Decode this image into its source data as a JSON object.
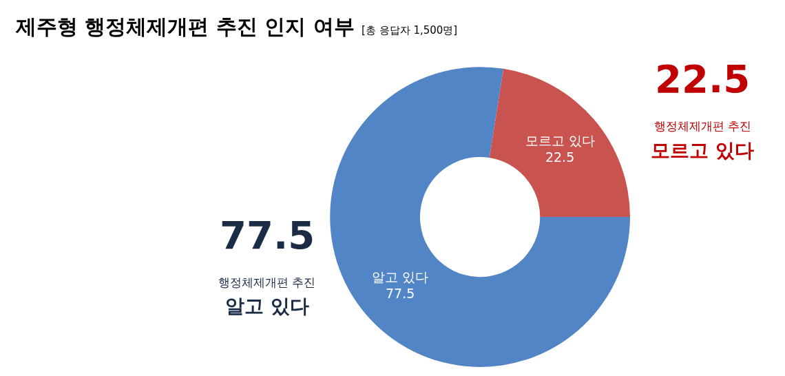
{
  "chart_data": {
    "type": "donut",
    "title": "제주형 행정체제개편 추진 인지 여부",
    "subtitle": "[총 응답자 1,500명]",
    "categories": [
      "알고 있다",
      "모르고 있다"
    ],
    "values": [
      77.5,
      22.5
    ],
    "colors": [
      "#5185c5",
      "#c9534f"
    ],
    "data_labels": true,
    "legend": false,
    "annotations": [
      "77.5",
      "행정체제개편 추진",
      "알고 있다",
      "22.5",
      "행정체제개편 추진",
      "모르고 있다"
    ]
  }
}
